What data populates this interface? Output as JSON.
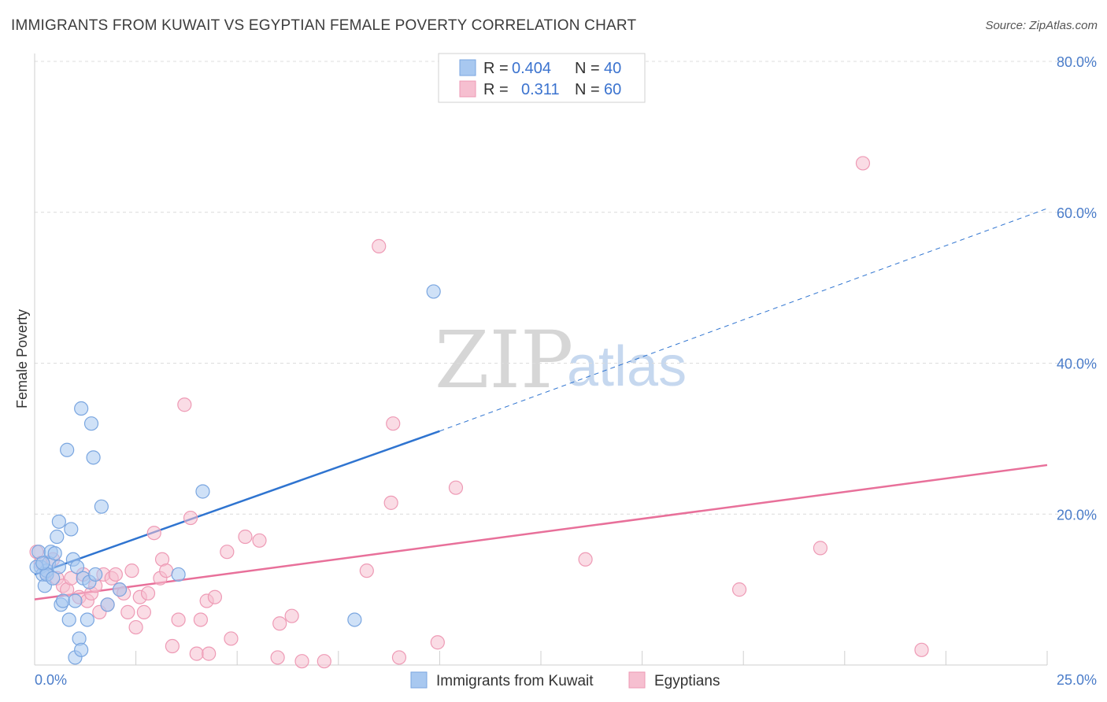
{
  "title": "IMMIGRANTS FROM KUWAIT VS EGYPTIAN FEMALE POVERTY CORRELATION CHART",
  "source": "Source: ZipAtlas.com",
  "watermark": {
    "zip": "ZIP",
    "atlas": "atlas"
  },
  "colors": {
    "blue_fill": "#a8c8f0",
    "blue_stroke": "#7aa6e0",
    "blue_line": "#2f74d0",
    "pink_fill": "#f6bfd0",
    "pink_stroke": "#ee9ab5",
    "pink_line": "#e8709a",
    "grid": "#dcdcdc",
    "axis_text": "#4a7cc9"
  },
  "legend": {
    "rows": [
      {
        "r_label": "R =",
        "r_value": "0.404",
        "n_label": "N =",
        "n_value": "40",
        "color": "#a8c8f0"
      },
      {
        "r_label": "R =",
        "r_value": "0.311",
        "n_label": "N =",
        "n_value": "60",
        "color": "#f6bfd0"
      }
    ]
  },
  "bottom_legend": [
    {
      "label": "Immigrants from Kuwait",
      "color": "#a8c8f0"
    },
    {
      "label": "Egyptians",
      "color": "#f6bfd0"
    }
  ],
  "chart_data": {
    "type": "scatter",
    "title": "IMMIGRANTS FROM KUWAIT VS EGYPTIAN FEMALE POVERTY CORRELATION CHART",
    "xlabel": "",
    "ylabel": "Female Poverty",
    "xlim": [
      0,
      25
    ],
    "ylim": [
      0,
      80
    ],
    "x_tick_labels": [
      "0.0%",
      "25.0%"
    ],
    "y_ticks": [
      20,
      40,
      60,
      80
    ],
    "y_tick_labels": [
      "20.0%",
      "40.0%",
      "60.0%",
      "80.0%"
    ],
    "grid": true,
    "series": [
      {
        "name": "Immigrants from Kuwait",
        "R": 0.404,
        "N": 40,
        "trend": {
          "x0": 0,
          "y0": 12.0,
          "x1": 10.0,
          "y1": 31.0,
          "dashed_to_x": 25,
          "dashed_to_y": 60.5
        },
        "points": [
          [
            0.1,
            15.0
          ],
          [
            0.15,
            13.0
          ],
          [
            0.2,
            12.0
          ],
          [
            0.25,
            10.5
          ],
          [
            0.3,
            12.5
          ],
          [
            0.35,
            13.5
          ],
          [
            0.4,
            15.0
          ],
          [
            0.5,
            14.8
          ],
          [
            0.55,
            17.0
          ],
          [
            0.6,
            19.0
          ],
          [
            0.65,
            8.0
          ],
          [
            0.7,
            8.5
          ],
          [
            0.8,
            28.5
          ],
          [
            0.85,
            6.0
          ],
          [
            0.9,
            18.0
          ],
          [
            0.95,
            14.0
          ],
          [
            1.0,
            1.0
          ],
          [
            1.05,
            13.0
          ],
          [
            1.1,
            3.5
          ],
          [
            1.15,
            2.0
          ],
          [
            1.0,
            8.5
          ],
          [
            1.2,
            11.5
          ],
          [
            1.3,
            6.0
          ],
          [
            1.15,
            34.0
          ],
          [
            1.35,
            11.0
          ],
          [
            1.4,
            32.0
          ],
          [
            1.45,
            27.5
          ],
          [
            1.5,
            12.0
          ],
          [
            1.65,
            21.0
          ],
          [
            1.8,
            8.0
          ],
          [
            2.1,
            10.0
          ],
          [
            3.55,
            12.0
          ],
          [
            4.15,
            23.0
          ],
          [
            9.85,
            49.5
          ],
          [
            7.9,
            6.0
          ],
          [
            0.05,
            13.0
          ],
          [
            0.3,
            12.0
          ],
          [
            0.6,
            13.0
          ],
          [
            0.45,
            11.5
          ],
          [
            0.2,
            13.5
          ]
        ]
      },
      {
        "name": "Egyptians",
        "R": 0.311,
        "N": 60,
        "trend": {
          "x0": 0,
          "y0": 8.7,
          "x1": 25,
          "y1": 26.5
        },
        "points": [
          [
            0.05,
            15.0
          ],
          [
            0.15,
            13.5
          ],
          [
            0.3,
            12.0
          ],
          [
            0.45,
            14.0
          ],
          [
            0.55,
            11.5
          ],
          [
            0.7,
            10.5
          ],
          [
            0.8,
            10.0
          ],
          [
            0.9,
            11.5
          ],
          [
            1.1,
            9.0
          ],
          [
            1.2,
            12.0
          ],
          [
            1.3,
            8.5
          ],
          [
            1.4,
            9.5
          ],
          [
            1.5,
            10.5
          ],
          [
            1.6,
            7.0
          ],
          [
            1.7,
            12.0
          ],
          [
            1.8,
            8.0
          ],
          [
            1.9,
            11.5
          ],
          [
            2.0,
            12.0
          ],
          [
            2.1,
            10.0
          ],
          [
            2.2,
            9.5
          ],
          [
            2.3,
            7.0
          ],
          [
            2.4,
            12.5
          ],
          [
            2.5,
            5.0
          ],
          [
            2.6,
            9.0
          ],
          [
            2.7,
            7.0
          ],
          [
            2.8,
            9.5
          ],
          [
            2.95,
            17.5
          ],
          [
            3.1,
            11.5
          ],
          [
            3.15,
            14.0
          ],
          [
            3.25,
            12.5
          ],
          [
            3.4,
            2.5
          ],
          [
            3.55,
            6.0
          ],
          [
            3.7,
            34.5
          ],
          [
            3.85,
            19.5
          ],
          [
            4.0,
            1.5
          ],
          [
            4.1,
            6.0
          ],
          [
            4.25,
            8.5
          ],
          [
            4.3,
            1.5
          ],
          [
            4.45,
            9.0
          ],
          [
            4.75,
            15.0
          ],
          [
            4.85,
            3.5
          ],
          [
            5.2,
            17.0
          ],
          [
            5.55,
            16.5
          ],
          [
            6.0,
            1.0
          ],
          [
            6.05,
            5.5
          ],
          [
            6.35,
            6.5
          ],
          [
            6.6,
            0.5
          ],
          [
            7.15,
            0.5
          ],
          [
            8.2,
            12.5
          ],
          [
            8.5,
            55.5
          ],
          [
            8.8,
            21.5
          ],
          [
            8.85,
            32.0
          ],
          [
            9.0,
            1.0
          ],
          [
            9.95,
            3.0
          ],
          [
            10.4,
            23.5
          ],
          [
            13.6,
            14.0
          ],
          [
            17.4,
            10.0
          ],
          [
            19.4,
            15.5
          ],
          [
            20.45,
            66.5
          ],
          [
            21.9,
            2.0
          ]
        ]
      }
    ]
  }
}
